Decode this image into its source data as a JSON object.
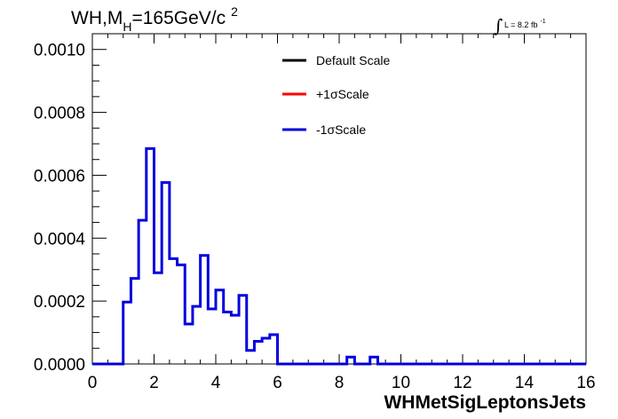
{
  "chart_data": {
    "type": "line",
    "title_parts": {
      "main": "WH,M",
      "sub": "H",
      "rest": "=165GeV/c",
      "sup": "2"
    },
    "lumi": {
      "integral_symbol": "∫",
      "text": "L = 8.2 fb",
      "sup": "-1"
    },
    "xlabel": "WHMetSigLeptonsJets",
    "ylabel": "",
    "xlim": [
      0,
      16
    ],
    "ylim": [
      0,
      0.00105
    ],
    "x_ticks": [
      "0",
      "2",
      "4",
      "6",
      "8",
      "10",
      "12",
      "14",
      "16"
    ],
    "y_ticks": [
      "0.0000",
      "0.0002",
      "0.0004",
      "0.0006",
      "0.0008",
      "0.0010"
    ],
    "bin_width": 0.25,
    "bin_start": 0,
    "legend": [
      {
        "name": "Default Scale",
        "color": "#000000"
      },
      {
        "name": "+1σScale",
        "color": "#ff0000"
      },
      {
        "name": "-1σScale",
        "color": "#0000dd"
      }
    ],
    "series": [
      {
        "name": "-1σScale",
        "color": "#0000dd",
        "values": [
          0,
          0,
          0,
          0,
          0.000197,
          0.000272,
          0.000457,
          0.000685,
          0.00029,
          0.000577,
          0.000335,
          0.000315,
          0.000127,
          0.000183,
          0.000345,
          0.000175,
          0.000235,
          0.000165,
          0.000155,
          0.000218,
          4.3e-05,
          7.2e-05,
          8.2e-05,
          9.3e-05,
          0,
          0,
          0,
          0,
          0,
          0,
          0,
          0,
          0,
          2.2e-05,
          0,
          0,
          2.2e-05,
          0,
          0,
          0,
          0,
          0,
          0,
          0,
          0,
          0,
          0,
          0,
          0,
          0,
          0,
          0,
          0,
          0,
          0,
          0,
          0,
          0,
          0,
          0,
          0,
          0,
          0,
          0
        ]
      }
    ]
  }
}
